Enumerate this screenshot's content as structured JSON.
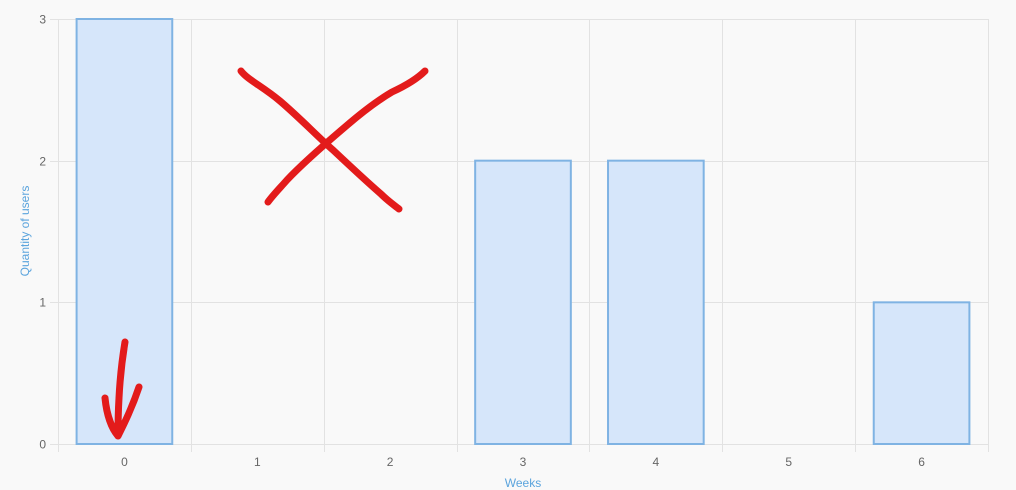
{
  "chart_data": {
    "type": "bar",
    "categories": [
      "0",
      "1",
      "2",
      "3",
      "4",
      "5",
      "6"
    ],
    "values": [
      3,
      0,
      0,
      2,
      2,
      0,
      1
    ],
    "title": "",
    "xlabel": "Weeks",
    "ylabel": "Quantity of users",
    "ylim": [
      0,
      3
    ],
    "yticks": [
      "0",
      "1",
      "2",
      "3"
    ],
    "grid": true,
    "colors": {
      "bar_fill": "#d6e6fa",
      "bar_stroke": "#7fb3e3",
      "grid": "#e2e2e2",
      "axis_title": "#5ba4dd",
      "tick_text": "#666666",
      "annotation": "#e31b1b"
    },
    "annotations": [
      {
        "type": "hand-drawn-arrow",
        "category": "0"
      },
      {
        "type": "hand-drawn-x",
        "categories": [
          "1",
          "2"
        ]
      }
    ]
  }
}
